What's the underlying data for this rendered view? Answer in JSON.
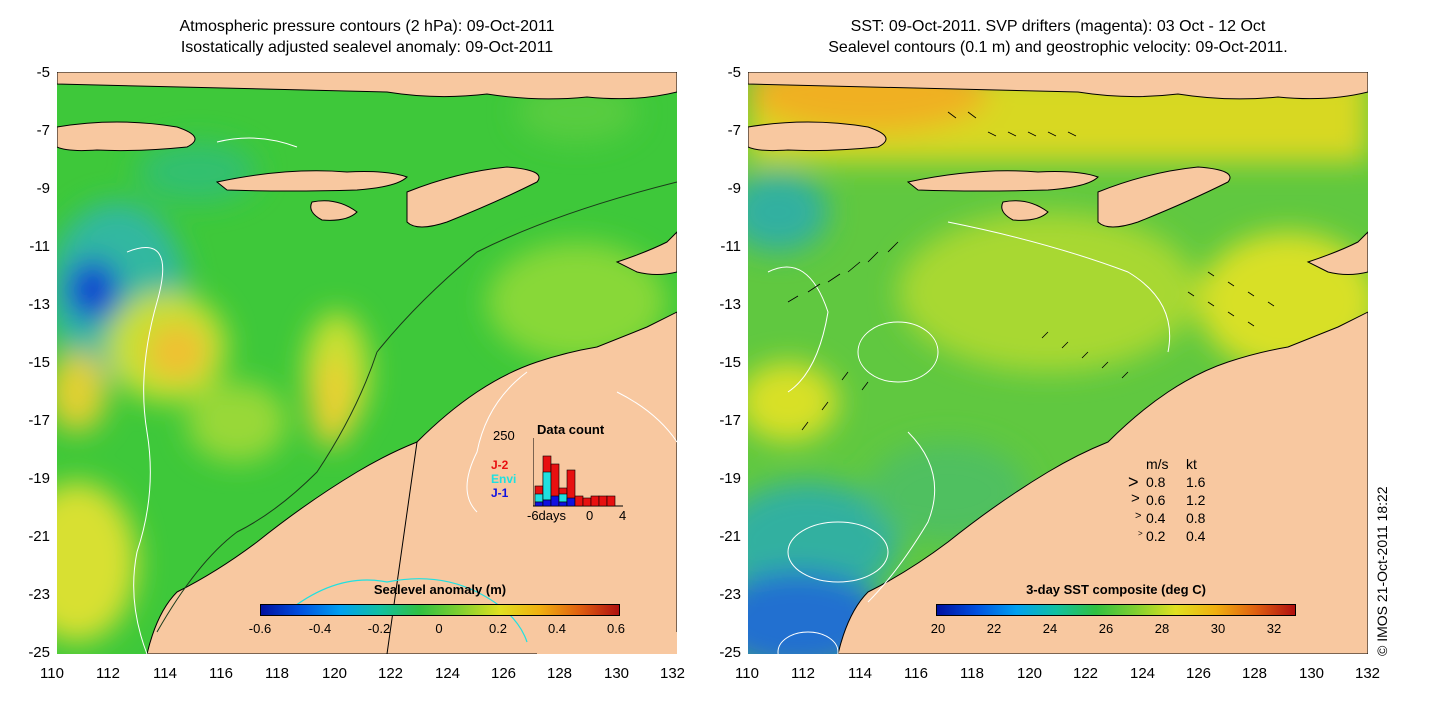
{
  "left_panel": {
    "title_line1": "Atmospheric pressure contours (2 hPa): 09-Oct-2011",
    "title_line2": "Isostatically adjusted sealevel anomaly: 09-Oct-2011",
    "colorbar": {
      "title": "Sealevel anomaly (m)",
      "labels": [
        "-0.6",
        "-0.4",
        "-0.2",
        "0",
        "0.2",
        "0.4",
        "0.6"
      ]
    },
    "data_count": {
      "title": "Data count",
      "ymax_label": "250",
      "series": [
        {
          "name": "J-2",
          "color": "#e81010"
        },
        {
          "name": "Envi",
          "color": "#20e0e0"
        },
        {
          "name": "J-1",
          "color": "#1010e0"
        }
      ],
      "x_labels": [
        "-6days",
        "0",
        "4"
      ]
    }
  },
  "right_panel": {
    "title_line1": "SST: 09-Oct-2011. SVP drifters (magenta): 03 Oct - 12 Oct",
    "title_line2": "Sealevel contours (0.1 m) and geostrophic velocity: 09-Oct-2011.",
    "colorbar": {
      "title": "3-day SST composite (deg C)",
      "labels": [
        "20",
        "22",
        "24",
        "26",
        "28",
        "30",
        "32"
      ]
    },
    "velocity_legend": {
      "header_ms": "m/s",
      "header_kt": "kt",
      "rows": [
        {
          "ms": "0.8",
          "kt": "1.6"
        },
        {
          "ms": "0.6",
          "kt": "1.2"
        },
        {
          "ms": "0.4",
          "kt": "0.8"
        },
        {
          "ms": "0.2",
          "kt": "0.4"
        }
      ]
    }
  },
  "axes": {
    "y_labels": [
      "-5",
      "-7",
      "-9",
      "-11",
      "-13",
      "-15",
      "-17",
      "-19",
      "-21",
      "-23",
      "-25"
    ],
    "x_labels": [
      "110",
      "112",
      "114",
      "116",
      "118",
      "120",
      "122",
      "124",
      "126",
      "128",
      "130",
      "132"
    ]
  },
  "copyright": "© IMOS 21-Oct-2011 18:22",
  "colors": {
    "land": "#f8c8a0",
    "ocean_green": "#3ec83a"
  }
}
